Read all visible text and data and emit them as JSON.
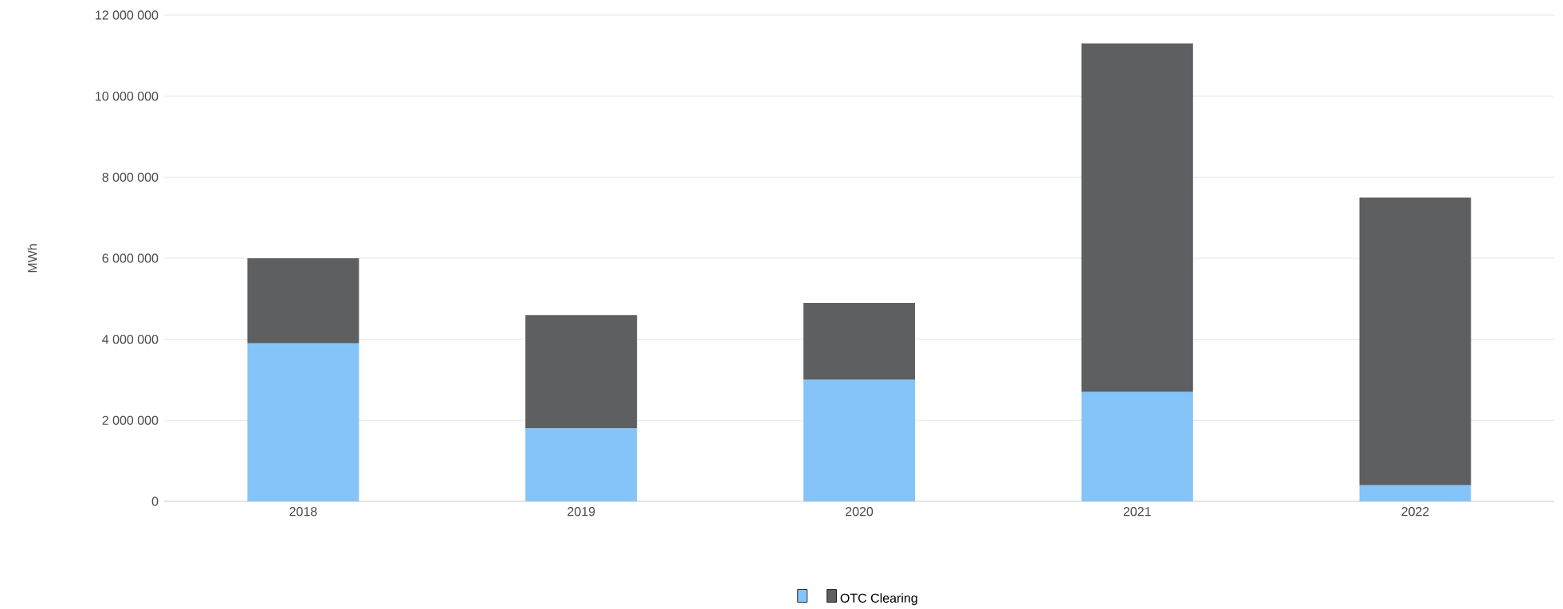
{
  "chart_data": {
    "type": "bar",
    "stacked": true,
    "ylabel": "MWh",
    "categories": [
      "2018",
      "2019",
      "2020",
      "2021",
      "2022"
    ],
    "series": [
      {
        "color": "#85c4f8",
        "values": [
          3900000,
          1800000,
          3000000,
          2700000,
          400000
        ]
      },
      {
        "name": "OTC Clearing",
        "color": "#5d5f61",
        "values": [
          2100000,
          2800000,
          1900000,
          8600000,
          7100000
        ]
      }
    ],
    "ylim": [
      0,
      12000000
    ],
    "yticks": [
      0,
      {
        "value": 2000000,
        "label": "2 000 000"
      },
      {
        "value": 4000000,
        "label": "4 000 000"
      },
      {
        "value": 6000000,
        "label": "6 000 000"
      },
      {
        "value": 8000000,
        "label": "8 000 000"
      },
      {
        "value": 10000000,
        "label": "10 000 000"
      },
      {
        "value": 12000000,
        "label": "12 000 000"
      }
    ],
    "grid": "y",
    "legend": "bottom"
  }
}
